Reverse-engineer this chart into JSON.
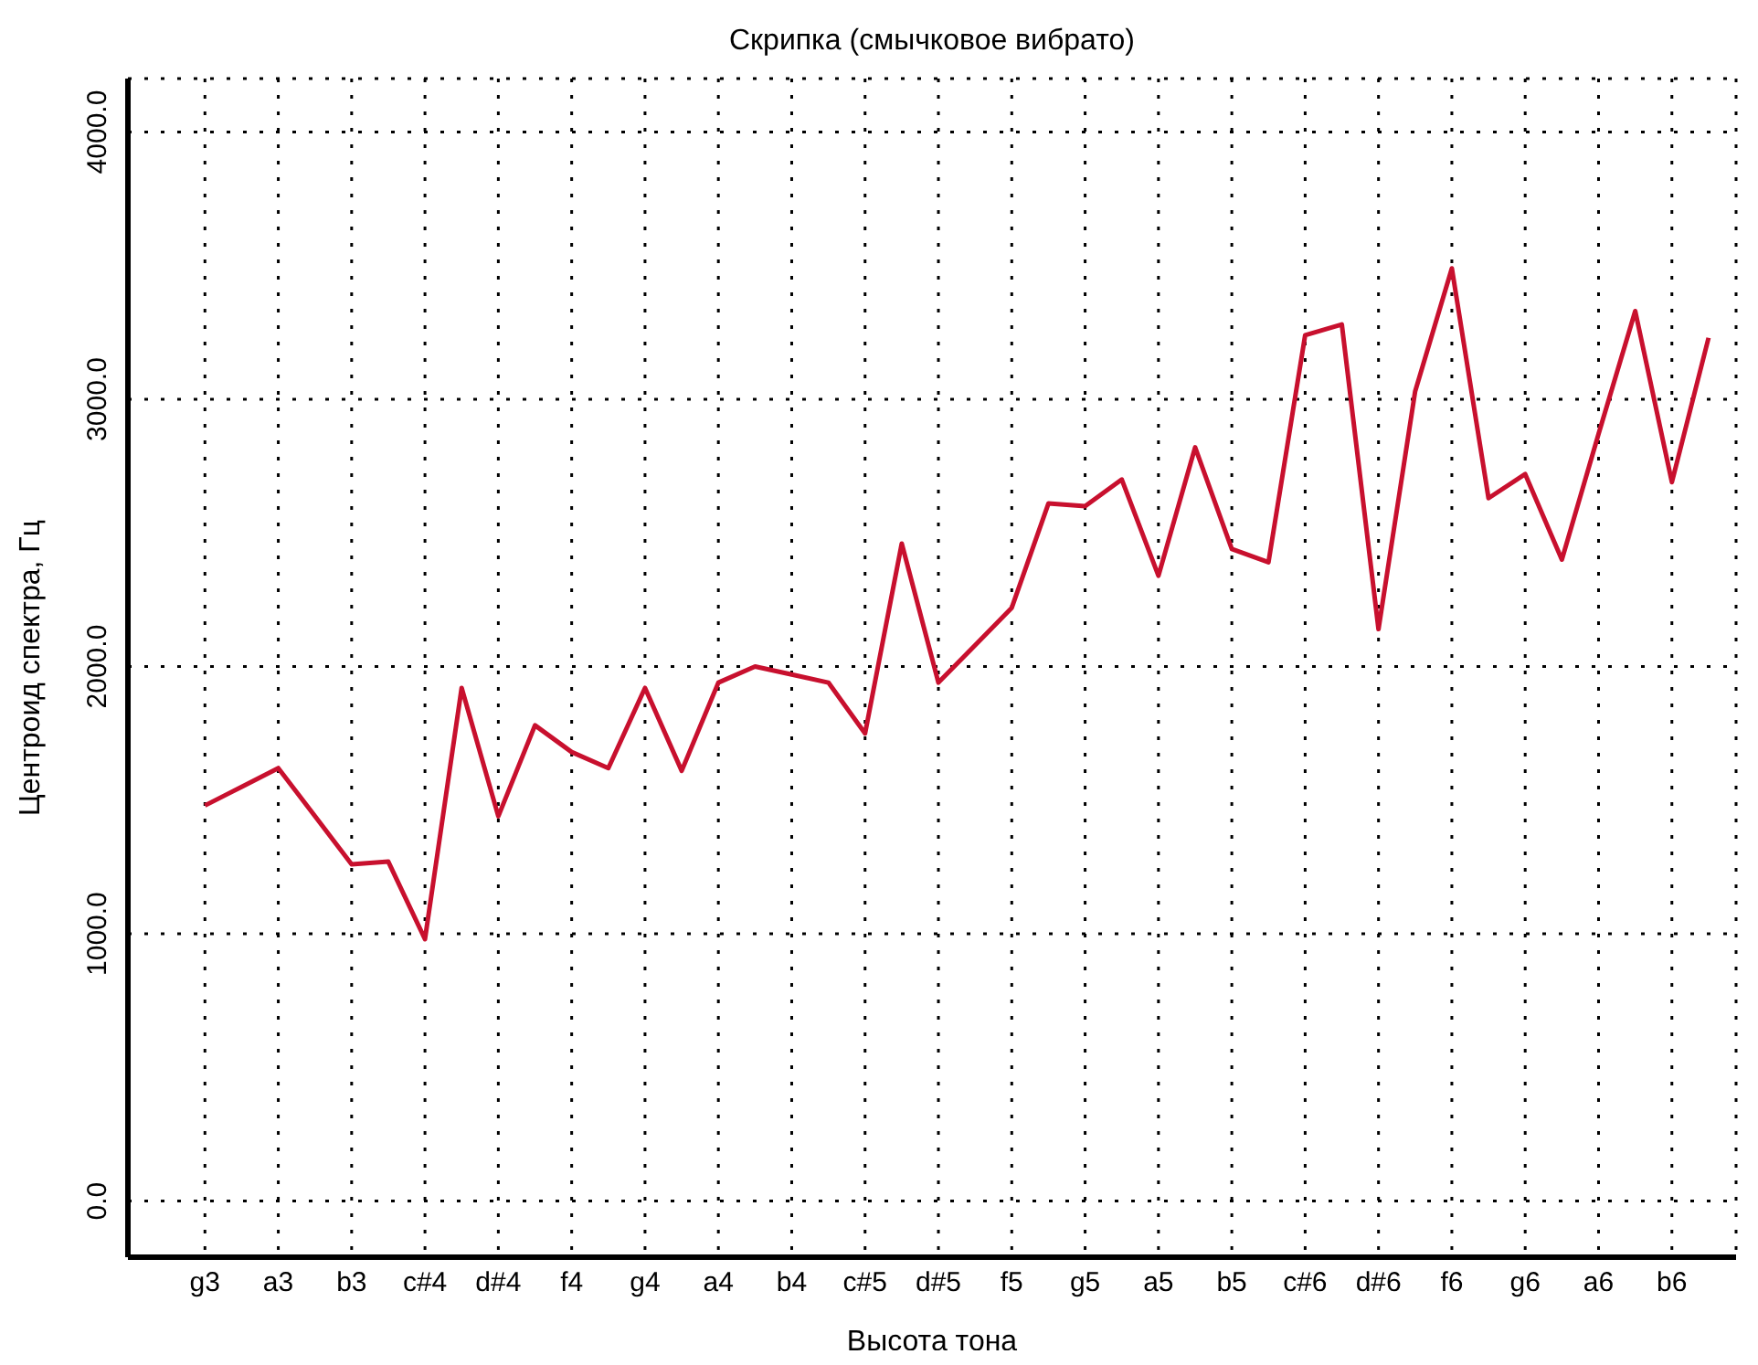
{
  "chart_data": {
    "type": "line",
    "title": "Скрипка (смычковое вибрато)",
    "xlabel": "Высота тона",
    "ylabel": "Центроид спектра, Гц",
    "categories": [
      "g3",
      null,
      "a3",
      null,
      "b3",
      null,
      "c#4",
      null,
      "d#4",
      null,
      "f4",
      null,
      "g4",
      null,
      "a4",
      null,
      "b4",
      null,
      "c#5",
      null,
      "d#5",
      null,
      "f5",
      null,
      "g5",
      null,
      "a5",
      null,
      "b5",
      null,
      "c#6",
      null,
      "d#6",
      null,
      "f6",
      null,
      "g6",
      null,
      "a6",
      null,
      "b6",
      null
    ],
    "series": [
      {
        "color": "#c8102e",
        "values": [
          1480,
          1550,
          1620,
          1440,
          1260,
          1270,
          980,
          1920,
          1440,
          1780,
          1680,
          1620,
          1920,
          1610,
          1940,
          2000,
          1970,
          1940,
          1750,
          2460,
          1940,
          2080,
          2220,
          2610,
          2600,
          2700,
          2340,
          2820,
          2440,
          2390,
          3240,
          3280,
          2140,
          3030,
          3490,
          2630,
          2720,
          2400,
          2870,
          3330,
          2690,
          3230
        ]
      }
    ],
    "ylim": [
      -210,
      4200
    ],
    "yticks": [
      {
        "value": 0,
        "label": "0.0"
      },
      {
        "value": 1000,
        "label": "1000.0"
      },
      {
        "value": 2000,
        "label": "2000.0"
      },
      {
        "value": 3000,
        "label": "3000.0"
      },
      {
        "value": 4000,
        "label": "4000.0"
      }
    ],
    "grid": true,
    "marker": "none",
    "line_style": "solid"
  }
}
